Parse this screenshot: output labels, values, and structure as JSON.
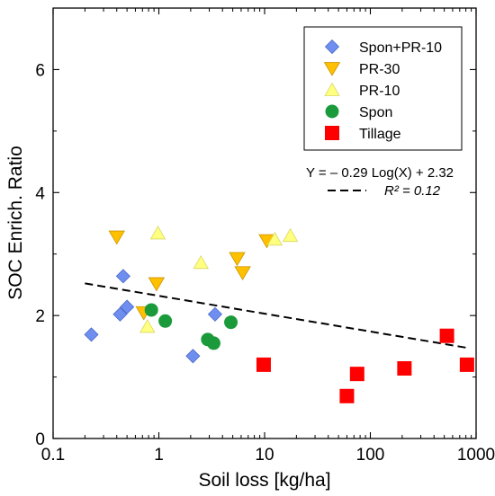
{
  "chart_data": {
    "type": "scatter",
    "xlabel": "Soil loss [kg/ha]",
    "ylabel": "SOC Enrich. Ratio",
    "xscale": "log",
    "xlim": [
      0.1,
      1000
    ],
    "ylim": [
      0,
      7
    ],
    "x_ticks": [
      0.1,
      1,
      10,
      100,
      1000
    ],
    "x_tick_labels": [
      "0.1",
      "1",
      "10",
      "100",
      "1000"
    ],
    "y_ticks": [
      0,
      2,
      4,
      6
    ],
    "y_tick_labels": [
      "0",
      "2",
      "4",
      "6"
    ],
    "grid": false,
    "legend_position": "top-right",
    "series": [
      {
        "name": "Spon+PR-10",
        "marker": "diamond",
        "color": "#6f8ff0",
        "points": [
          [
            0.23,
            1.69
          ],
          [
            0.43,
            2.02
          ],
          [
            0.46,
            2.64
          ],
          [
            0.5,
            2.14
          ],
          [
            2.1,
            1.34
          ],
          [
            3.4,
            2.02
          ]
        ]
      },
      {
        "name": "PR-30",
        "marker": "triangle-down",
        "color": "#ffc000",
        "points": [
          [
            0.4,
            3.28
          ],
          [
            0.72,
            2.05
          ],
          [
            0.95,
            2.52
          ],
          [
            5.5,
            2.93
          ],
          [
            6.2,
            2.7
          ],
          [
            10.5,
            3.22
          ]
        ]
      },
      {
        "name": "PR-10",
        "marker": "triangle-up",
        "color": "#ffff80",
        "points": [
          [
            0.78,
            1.82
          ],
          [
            0.98,
            3.34
          ],
          [
            2.5,
            2.86
          ],
          [
            12.5,
            3.24
          ],
          [
            17.5,
            3.3
          ]
        ]
      },
      {
        "name": "Spon",
        "marker": "circle",
        "color": "#1a9a3a",
        "points": [
          [
            0.85,
            2.09
          ],
          [
            1.15,
            1.91
          ],
          [
            2.9,
            1.61
          ],
          [
            3.3,
            1.55
          ],
          [
            4.8,
            1.89
          ]
        ]
      },
      {
        "name": "Tillage",
        "marker": "square",
        "color": "#ff0000",
        "points": [
          [
            9.8,
            1.2
          ],
          [
            60,
            0.69
          ],
          [
            75,
            1.05
          ],
          [
            210,
            1.14
          ],
          [
            530,
            1.67
          ],
          [
            820,
            1.2
          ]
        ]
      }
    ],
    "regression": {
      "equation": "Y = – 0.29 Log(X) + 2.32",
      "r2_label": "R² = 0.12",
      "slope": -0.29,
      "intercept": 2.32,
      "x_range": [
        0.2,
        850
      ],
      "style": "dashed"
    }
  }
}
